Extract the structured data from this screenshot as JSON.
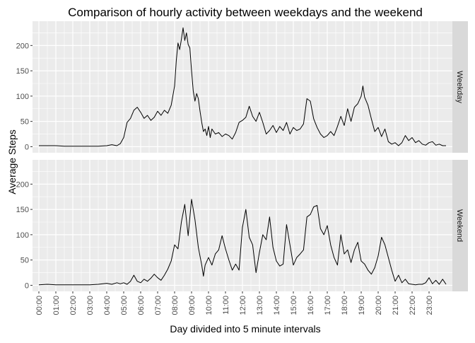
{
  "chart_data": {
    "type": "line",
    "title": "Comparison of hourly activity between weekdays and the weekend",
    "xlabel": "Day divided into 5 minute intervals",
    "ylabel": "Average Steps",
    "x_ticks": [
      "00:00",
      "01:00",
      "02:00",
      "03:00",
      "04:00",
      "05:00",
      "06:00",
      "07:00",
      "08:00",
      "09:00",
      "10:00",
      "11:00",
      "12:00",
      "13:00",
      "14:00",
      "15:00",
      "16:00",
      "17:00",
      "18:00",
      "19:00",
      "20:00",
      "21:00",
      "22:00",
      "23:00"
    ],
    "xlim": [
      0,
      24
    ],
    "ylim": [
      -12,
      248
    ],
    "y_ticks": [
      0,
      50,
      100,
      150,
      200
    ],
    "grid": true,
    "line_color": "#000000",
    "panel_color": "#ebebeb",
    "strip_color": "#d9d9d9",
    "panels": [
      {
        "name": "Weekday",
        "points": [
          [
            0,
            2
          ],
          [
            0.5,
            2
          ],
          [
            1,
            2
          ],
          [
            1.5,
            1
          ],
          [
            2,
            1
          ],
          [
            2.5,
            1
          ],
          [
            3,
            1
          ],
          [
            3.5,
            1
          ],
          [
            4,
            2
          ],
          [
            4.3,
            4
          ],
          [
            4.6,
            2
          ],
          [
            4.8,
            6
          ],
          [
            5.0,
            18
          ],
          [
            5.2,
            48
          ],
          [
            5.4,
            56
          ],
          [
            5.6,
            72
          ],
          [
            5.8,
            78
          ],
          [
            6.0,
            68
          ],
          [
            6.2,
            56
          ],
          [
            6.4,
            62
          ],
          [
            6.6,
            52
          ],
          [
            6.8,
            58
          ],
          [
            7.0,
            70
          ],
          [
            7.2,
            62
          ],
          [
            7.4,
            72
          ],
          [
            7.6,
            66
          ],
          [
            7.8,
            82
          ],
          [
            8.0,
            120
          ],
          [
            8.1,
            170
          ],
          [
            8.2,
            205
          ],
          [
            8.3,
            192
          ],
          [
            8.4,
            212
          ],
          [
            8.5,
            235
          ],
          [
            8.6,
            210
          ],
          [
            8.7,
            225
          ],
          [
            8.8,
            202
          ],
          [
            8.9,
            195
          ],
          [
            9.0,
            150
          ],
          [
            9.1,
            110
          ],
          [
            9.2,
            90
          ],
          [
            9.3,
            105
          ],
          [
            9.4,
            95
          ],
          [
            9.5,
            70
          ],
          [
            9.6,
            48
          ],
          [
            9.7,
            30
          ],
          [
            9.8,
            35
          ],
          [
            9.9,
            22
          ],
          [
            10.0,
            40
          ],
          [
            10.1,
            18
          ],
          [
            10.2,
            35
          ],
          [
            10.4,
            25
          ],
          [
            10.6,
            28
          ],
          [
            10.8,
            20
          ],
          [
            11.0,
            25
          ],
          [
            11.2,
            22
          ],
          [
            11.4,
            15
          ],
          [
            11.6,
            28
          ],
          [
            11.8,
            48
          ],
          [
            12.0,
            52
          ],
          [
            12.2,
            58
          ],
          [
            12.4,
            80
          ],
          [
            12.6,
            60
          ],
          [
            12.8,
            50
          ],
          [
            13.0,
            68
          ],
          [
            13.2,
            48
          ],
          [
            13.4,
            25
          ],
          [
            13.6,
            32
          ],
          [
            13.8,
            42
          ],
          [
            14.0,
            28
          ],
          [
            14.2,
            40
          ],
          [
            14.4,
            32
          ],
          [
            14.6,
            48
          ],
          [
            14.8,
            25
          ],
          [
            15.0,
            38
          ],
          [
            15.2,
            32
          ],
          [
            15.4,
            35
          ],
          [
            15.6,
            45
          ],
          [
            15.8,
            95
          ],
          [
            16.0,
            90
          ],
          [
            16.2,
            55
          ],
          [
            16.4,
            38
          ],
          [
            16.6,
            25
          ],
          [
            16.8,
            18
          ],
          [
            17.0,
            22
          ],
          [
            17.2,
            30
          ],
          [
            17.4,
            22
          ],
          [
            17.6,
            40
          ],
          [
            17.8,
            60
          ],
          [
            18.0,
            42
          ],
          [
            18.2,
            75
          ],
          [
            18.4,
            50
          ],
          [
            18.6,
            78
          ],
          [
            18.8,
            85
          ],
          [
            19.0,
            100
          ],
          [
            19.1,
            120
          ],
          [
            19.2,
            98
          ],
          [
            19.4,
            82
          ],
          [
            19.6,
            55
          ],
          [
            19.8,
            30
          ],
          [
            20.0,
            38
          ],
          [
            20.2,
            20
          ],
          [
            20.4,
            35
          ],
          [
            20.6,
            10
          ],
          [
            20.8,
            5
          ],
          [
            21.0,
            8
          ],
          [
            21.2,
            2
          ],
          [
            21.4,
            8
          ],
          [
            21.6,
            22
          ],
          [
            21.8,
            12
          ],
          [
            22.0,
            18
          ],
          [
            22.2,
            8
          ],
          [
            22.4,
            12
          ],
          [
            22.6,
            5
          ],
          [
            22.8,
            3
          ],
          [
            23.0,
            8
          ],
          [
            23.2,
            10
          ],
          [
            23.4,
            3
          ],
          [
            23.6,
            5
          ],
          [
            23.8,
            2
          ],
          [
            24.0,
            2
          ]
        ]
      },
      {
        "name": "Weekend",
        "points": [
          [
            0,
            1
          ],
          [
            0.5,
            2
          ],
          [
            1,
            1
          ],
          [
            1.5,
            1
          ],
          [
            2,
            1
          ],
          [
            2.5,
            1
          ],
          [
            3,
            1
          ],
          [
            3.5,
            2
          ],
          [
            4,
            4
          ],
          [
            4.3,
            2
          ],
          [
            4.6,
            5
          ],
          [
            4.8,
            3
          ],
          [
            5.0,
            5
          ],
          [
            5.2,
            2
          ],
          [
            5.4,
            8
          ],
          [
            5.6,
            20
          ],
          [
            5.8,
            8
          ],
          [
            6.0,
            5
          ],
          [
            6.2,
            12
          ],
          [
            6.4,
            8
          ],
          [
            6.6,
            14
          ],
          [
            6.8,
            22
          ],
          [
            7.0,
            15
          ],
          [
            7.2,
            10
          ],
          [
            7.4,
            20
          ],
          [
            7.6,
            32
          ],
          [
            7.8,
            48
          ],
          [
            8.0,
            80
          ],
          [
            8.2,
            72
          ],
          [
            8.4,
            125
          ],
          [
            8.6,
            160
          ],
          [
            8.8,
            98
          ],
          [
            9.0,
            170
          ],
          [
            9.2,
            130
          ],
          [
            9.4,
            75
          ],
          [
            9.6,
            40
          ],
          [
            9.7,
            18
          ],
          [
            9.8,
            40
          ],
          [
            10.0,
            55
          ],
          [
            10.2,
            40
          ],
          [
            10.4,
            62
          ],
          [
            10.6,
            70
          ],
          [
            10.8,
            98
          ],
          [
            11.0,
            72
          ],
          [
            11.2,
            50
          ],
          [
            11.4,
            30
          ],
          [
            11.6,
            42
          ],
          [
            11.8,
            30
          ],
          [
            12.0,
            115
          ],
          [
            12.2,
            150
          ],
          [
            12.4,
            95
          ],
          [
            12.6,
            80
          ],
          [
            12.8,
            25
          ],
          [
            13.0,
            65
          ],
          [
            13.2,
            100
          ],
          [
            13.4,
            90
          ],
          [
            13.6,
            135
          ],
          [
            13.8,
            75
          ],
          [
            14.0,
            48
          ],
          [
            14.2,
            38
          ],
          [
            14.4,
            42
          ],
          [
            14.6,
            120
          ],
          [
            14.8,
            80
          ],
          [
            15.0,
            40
          ],
          [
            15.2,
            55
          ],
          [
            15.4,
            62
          ],
          [
            15.6,
            70
          ],
          [
            15.8,
            135
          ],
          [
            16.0,
            140
          ],
          [
            16.2,
            155
          ],
          [
            16.4,
            158
          ],
          [
            16.6,
            112
          ],
          [
            16.8,
            100
          ],
          [
            17.0,
            118
          ],
          [
            17.2,
            80
          ],
          [
            17.4,
            55
          ],
          [
            17.6,
            40
          ],
          [
            17.8,
            100
          ],
          [
            18.0,
            62
          ],
          [
            18.2,
            70
          ],
          [
            18.4,
            45
          ],
          [
            18.6,
            70
          ],
          [
            18.8,
            85
          ],
          [
            19.0,
            48
          ],
          [
            19.2,
            42
          ],
          [
            19.4,
            30
          ],
          [
            19.6,
            22
          ],
          [
            19.8,
            35
          ],
          [
            20.0,
            58
          ],
          [
            20.2,
            95
          ],
          [
            20.4,
            80
          ],
          [
            20.6,
            55
          ],
          [
            20.8,
            30
          ],
          [
            21.0,
            8
          ],
          [
            21.2,
            20
          ],
          [
            21.4,
            5
          ],
          [
            21.6,
            12
          ],
          [
            21.8,
            3
          ],
          [
            22.0,
            2
          ],
          [
            22.2,
            1
          ],
          [
            22.4,
            2
          ],
          [
            22.6,
            2
          ],
          [
            22.8,
            5
          ],
          [
            23.0,
            15
          ],
          [
            23.2,
            3
          ],
          [
            23.4,
            10
          ],
          [
            23.6,
            2
          ],
          [
            23.8,
            12
          ],
          [
            24.0,
            2
          ]
        ]
      }
    ]
  }
}
